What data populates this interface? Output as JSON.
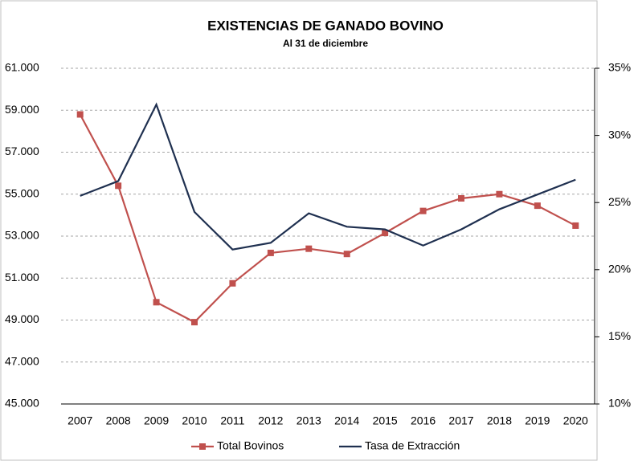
{
  "chart_data": {
    "type": "line",
    "title": "EXISTENCIAS DE GANADO BOVINO",
    "subtitle": "Al  31 de diciembre",
    "categories": [
      "2007",
      "2008",
      "2009",
      "2010",
      "2011",
      "2012",
      "2013",
      "2014",
      "2015",
      "2016",
      "2017",
      "2018",
      "2019",
      "2020"
    ],
    "series": [
      {
        "name": "Total Bovinos",
        "color": "#c0504d",
        "marker": "square",
        "values": [
          58800,
          55400,
          49850,
          48900,
          50750,
          52200,
          52400,
          52150,
          53150,
          54200,
          54800,
          55000,
          54450,
          53500
        ]
      },
      {
        "name": "Tasa de Extracción",
        "color": "#1f3050",
        "axis": "y2",
        "values": [
          25.5,
          26.6,
          32.3,
          24.3,
          21.5,
          22.0,
          24.2,
          23.2,
          23.0,
          21.8,
          23.0,
          24.5,
          25.6,
          26.7
        ]
      }
    ],
    "ylim": [
      45000,
      61000
    ],
    "yticks": [
      {
        "value": 45000,
        "label": "45.000"
      },
      {
        "value": 47000,
        "label": "47.000"
      },
      {
        "value": 49000,
        "label": "49.000"
      },
      {
        "value": 51000,
        "label": "51.000"
      },
      {
        "value": 53000,
        "label": "53.000"
      },
      {
        "value": 55000,
        "label": "55.000"
      },
      {
        "value": 57000,
        "label": "57.000"
      },
      {
        "value": 59000,
        "label": "59.000"
      },
      {
        "value": 61000,
        "label": "61.000"
      }
    ],
    "y2lim": [
      10,
      35
    ],
    "y2ticks": [
      {
        "value": 10,
        "label": "10%"
      },
      {
        "value": 15,
        "label": "15%"
      },
      {
        "value": 20,
        "label": "20%"
      },
      {
        "value": 25,
        "label": "25%"
      },
      {
        "value": 30,
        "label": "30%"
      },
      {
        "value": 35,
        "label": "35%"
      }
    ],
    "grid": true,
    "legend": "bottom"
  }
}
